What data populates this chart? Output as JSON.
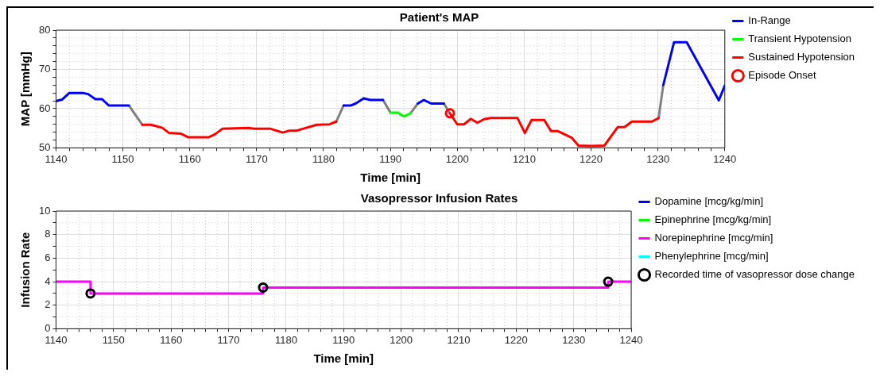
{
  "chart_data": [
    {
      "type": "line",
      "title": "Patient's MAP",
      "xlabel": "Time [min]",
      "ylabel": "MAP [mmHg]",
      "xlim": [
        1140,
        1240
      ],
      "ylim": [
        50,
        80
      ],
      "xticks": [
        1140,
        {
          "value": 1142,
          "label": null
        },
        {
          "value": 1144,
          "label": null
        },
        {
          "value": 1146,
          "label": null
        },
        {
          "value": 1148,
          "label": null
        },
        1150,
        {
          "value": 1152,
          "label": null
        },
        {
          "value": 1154,
          "label": null
        },
        {
          "value": 1156,
          "label": null
        },
        {
          "value": 1158,
          "label": null
        },
        1160,
        {
          "value": 1162,
          "label": null
        },
        {
          "value": 1164,
          "label": null
        },
        {
          "value": 1166,
          "label": null
        },
        {
          "value": 1168,
          "label": null
        },
        1170,
        {
          "value": 1172,
          "label": null
        },
        {
          "value": 1174,
          "label": null
        },
        {
          "value": 1176,
          "label": null
        },
        {
          "value": 1178,
          "label": null
        },
        1180,
        {
          "value": 1182,
          "label": null
        },
        {
          "value": 1184,
          "label": null
        },
        {
          "value": 1186,
          "label": null
        },
        {
          "value": 1188,
          "label": null
        },
        1190,
        {
          "value": 1192,
          "label": null
        },
        {
          "value": 1194,
          "label": null
        },
        {
          "value": 1196,
          "label": null
        },
        {
          "value": 1198,
          "label": null
        },
        1200,
        {
          "value": 1202,
          "label": null
        },
        {
          "value": 1204,
          "label": null
        },
        {
          "value": 1206,
          "label": null
        },
        {
          "value": 1208,
          "label": null
        },
        1210,
        {
          "value": 1212,
          "label": null
        },
        {
          "value": 1214,
          "label": null
        },
        {
          "value": 1216,
          "label": null
        },
        {
          "value": 1218,
          "label": null
        },
        1220,
        {
          "value": 1222,
          "label": null
        },
        {
          "value": 1224,
          "label": null
        },
        {
          "value": 1226,
          "label": null
        },
        {
          "value": 1228,
          "label": null
        },
        1230,
        {
          "value": 1232,
          "label": null
        },
        {
          "value": 1234,
          "label": null
        },
        {
          "value": 1236,
          "label": null
        },
        {
          "value": 1238,
          "label": null
        },
        1240
      ],
      "yticks": [
        50,
        {
          "value": 52,
          "label": null
        },
        {
          "value": 54,
          "label": null
        },
        {
          "value": 56,
          "label": null
        },
        {
          "value": 58,
          "label": null
        },
        60,
        {
          "value": 62,
          "label": null
        },
        {
          "value": 64,
          "label": null
        },
        {
          "value": 66,
          "label": null
        },
        {
          "value": 68,
          "label": null
        },
        70,
        {
          "value": 72,
          "label": null
        },
        {
          "value": 74,
          "label": null
        },
        {
          "value": 76,
          "label": null
        },
        {
          "value": 78,
          "label": null
        },
        80
      ],
      "grid": true,
      "legend": "right",
      "line_style": "solid",
      "series": [
        {
          "name": "In-Range",
          "color": "#0000ff",
          "x": [
            1140,
            1140.9,
            1142,
            1144,
            1144.8,
            1145.9,
            1146.9,
            1147.9,
            1150.9,
            1166,
            1183,
            1184.1,
            1184.8,
            1186,
            1187,
            1188.9,
            1192,
            1194.1,
            1195,
            1196.1,
            1198,
            1215,
            1230.8,
            1232.4,
            1234.3,
            1238.1,
            1239.1,
            1240
          ],
          "values": [
            61.9,
            62.3,
            64,
            64,
            63.7,
            62.4,
            62.4,
            60.8,
            60.8,
            null,
            60.8,
            60.8,
            61.3,
            62.6,
            62.2,
            62.2,
            null,
            61.3,
            62.2,
            61.3,
            61.3,
            null,
            66,
            76.9,
            76.9,
            65.2,
            62.1,
            65.9
          ]
        },
        {
          "name": "Transient Hypotension",
          "color": "#00ff00",
          "x": [
            1190,
            1191.1,
            1192,
            1193
          ],
          "values": [
            59,
            59,
            58,
            58.8
          ]
        },
        {
          "name": "Sustained Hypotension",
          "color": "#ff0000",
          "x": [
            1152.9,
            1154.2,
            1155.9,
            1156.9,
            1158.7,
            1159.8,
            1162.8,
            1163.8,
            1164.9,
            1168.8,
            1169.6,
            1172,
            1173.9,
            1174.9,
            1176,
            1177.4,
            1179,
            1180.9,
            1181.9,
            1190,
            1198.9,
            1200,
            1201,
            1202,
            1203,
            1204,
            1205,
            1209,
            1210.1,
            1211.1,
            1213,
            1214,
            1215,
            1217.1,
            1218.1,
            1220,
            1222,
            1224,
            1225,
            1226.1,
            1229.1,
            1230.1
          ],
          "values": [
            55.9,
            55.9,
            55.1,
            53.8,
            53.6,
            52.7,
            52.7,
            53.5,
            54.9,
            55.1,
            54.9,
            54.9,
            53.9,
            54.4,
            54.4,
            55.1,
            55.9,
            56,
            56.7,
            null,
            58.8,
            56,
            56,
            57.4,
            56.4,
            57.3,
            57.6,
            57.6,
            53.8,
            57.1,
            57.1,
            54.3,
            54.3,
            52.6,
            50.6,
            50.5,
            50.6,
            55.3,
            55.3,
            56.7,
            56.7,
            57.6
          ]
        },
        {
          "color": "#808080",
          "x": [
            1150.9,
            1152,
            1152.9,
            1166,
            1181.9,
            1183,
            1185,
            1188.9,
            1190,
            1191,
            1193,
            1194.1,
            1196,
            1198,
            1198.9,
            1215,
            1230.1,
            1230.8
          ],
          "values": [
            60.8,
            58.1,
            55.9,
            null,
            56.7,
            60.8,
            null,
            62.2,
            59,
            null,
            58.8,
            61.3,
            null,
            61.3,
            58.8,
            null,
            57.6,
            66
          ]
        },
        {
          "name": "Episode Onset",
          "type": "scatter",
          "marker": "circle",
          "color": "#ff0000",
          "x": [
            1198.9
          ],
          "values": [
            58.8
          ]
        }
      ]
    },
    {
      "type": "step",
      "title": "Vasopressor Infusion Rates",
      "xlabel": "Time [min]",
      "ylabel": "Infusion Rate",
      "xlim": [
        1140,
        1240
      ],
      "ylim": [
        0,
        10
      ],
      "xticks": [
        1140,
        {
          "value": 1142,
          "label": null
        },
        {
          "value": 1144,
          "label": null
        },
        {
          "value": 1146,
          "label": null
        },
        {
          "value": 1148,
          "label": null
        },
        1150,
        {
          "value": 1152,
          "label": null
        },
        {
          "value": 1154,
          "label": null
        },
        {
          "value": 1156,
          "label": null
        },
        {
          "value": 1158,
          "label": null
        },
        1160,
        {
          "value": 1162,
          "label": null
        },
        {
          "value": 1164,
          "label": null
        },
        {
          "value": 1166,
          "label": null
        },
        {
          "value": 1168,
          "label": null
        },
        1170,
        {
          "value": 1172,
          "label": null
        },
        {
          "value": 1174,
          "label": null
        },
        {
          "value": 1176,
          "label": null
        },
        {
          "value": 1178,
          "label": null
        },
        1180,
        {
          "value": 1182,
          "label": null
        },
        {
          "value": 1184,
          "label": null
        },
        {
          "value": 1186,
          "label": null
        },
        {
          "value": 1188,
          "label": null
        },
        1190,
        {
          "value": 1192,
          "label": null
        },
        {
          "value": 1194,
          "label": null
        },
        {
          "value": 1196,
          "label": null
        },
        {
          "value": 1198,
          "label": null
        },
        1200,
        {
          "value": 1202,
          "label": null
        },
        {
          "value": 1204,
          "label": null
        },
        {
          "value": 1206,
          "label": null
        },
        {
          "value": 1208,
          "label": null
        },
        1210,
        {
          "value": 1212,
          "label": null
        },
        {
          "value": 1214,
          "label": null
        },
        {
          "value": 1216,
          "label": null
        },
        {
          "value": 1218,
          "label": null
        },
        1220,
        {
          "value": 1222,
          "label": null
        },
        {
          "value": 1224,
          "label": null
        },
        {
          "value": 1226,
          "label": null
        },
        {
          "value": 1228,
          "label": null
        },
        1230,
        {
          "value": 1232,
          "label": null
        },
        {
          "value": 1234,
          "label": null
        },
        {
          "value": 1236,
          "label": null
        },
        {
          "value": 1238,
          "label": null
        },
        1240
      ],
      "yticks": [
        0,
        {
          "value": 1,
          "label": null
        },
        2,
        {
          "value": 3,
          "label": null
        },
        4,
        {
          "value": 5,
          "label": null
        },
        6,
        {
          "value": 7,
          "label": null
        },
        8,
        {
          "value": 9,
          "label": null
        },
        10
      ],
      "grid": true,
      "legend": "right",
      "line_style": "solid",
      "series": [
        {
          "name": "Dopamine [mcg/kg/min]",
          "color": "#0000ff"
        },
        {
          "name": "Epinephrine [mcg/kg/min]",
          "color": "#00ff00"
        },
        {
          "name": "Norepinephrine [mcg/min]",
          "color": "#ff00ff",
          "x": [
            1140,
            1146,
            1176,
            1236,
            1240
          ],
          "values": [
            4,
            3,
            3.5,
            4,
            4
          ]
        },
        {
          "name": "Phenylephrine [mcg/min]",
          "color": "#00ffff"
        },
        {
          "name": "Recorded time of vasopressor dose change",
          "type": "scatter",
          "marker": "circle",
          "color": "#000000",
          "x": [
            1146,
            1176,
            1236
          ],
          "values": [
            3,
            3.5,
            4
          ]
        }
      ]
    }
  ]
}
